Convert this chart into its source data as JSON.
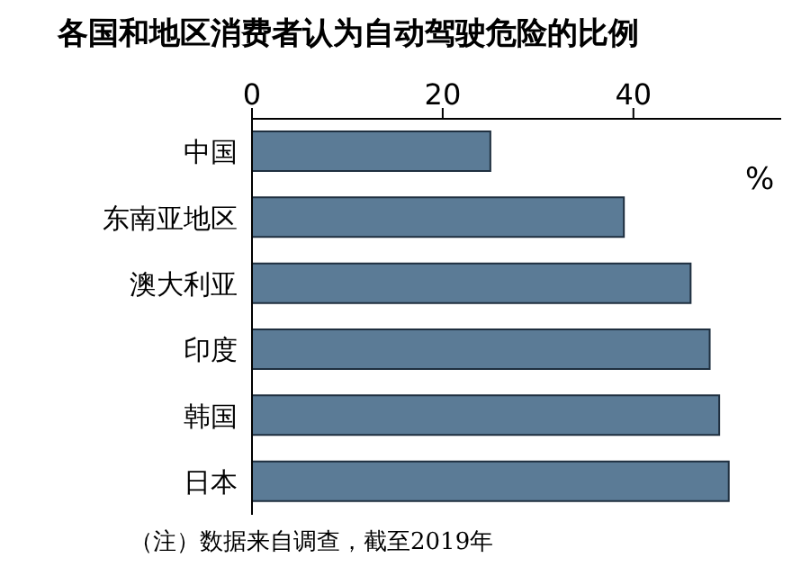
{
  "chart_data": {
    "type": "bar",
    "orientation": "horizontal",
    "title": "各国和地区消费者认为自动驾驶危险的比例",
    "categories": [
      "中国",
      "东南亚地区",
      "澳大利亚",
      "印度",
      "韩国",
      "日本"
    ],
    "values": [
      25,
      39,
      46,
      48,
      49,
      50
    ],
    "color": "#5b7b96",
    "xlim": [
      0,
      55.5
    ],
    "xticks": [
      0,
      20,
      40
    ],
    "annotations": [
      "%",
      "（注）数据来自调查，截至2019年"
    ]
  }
}
